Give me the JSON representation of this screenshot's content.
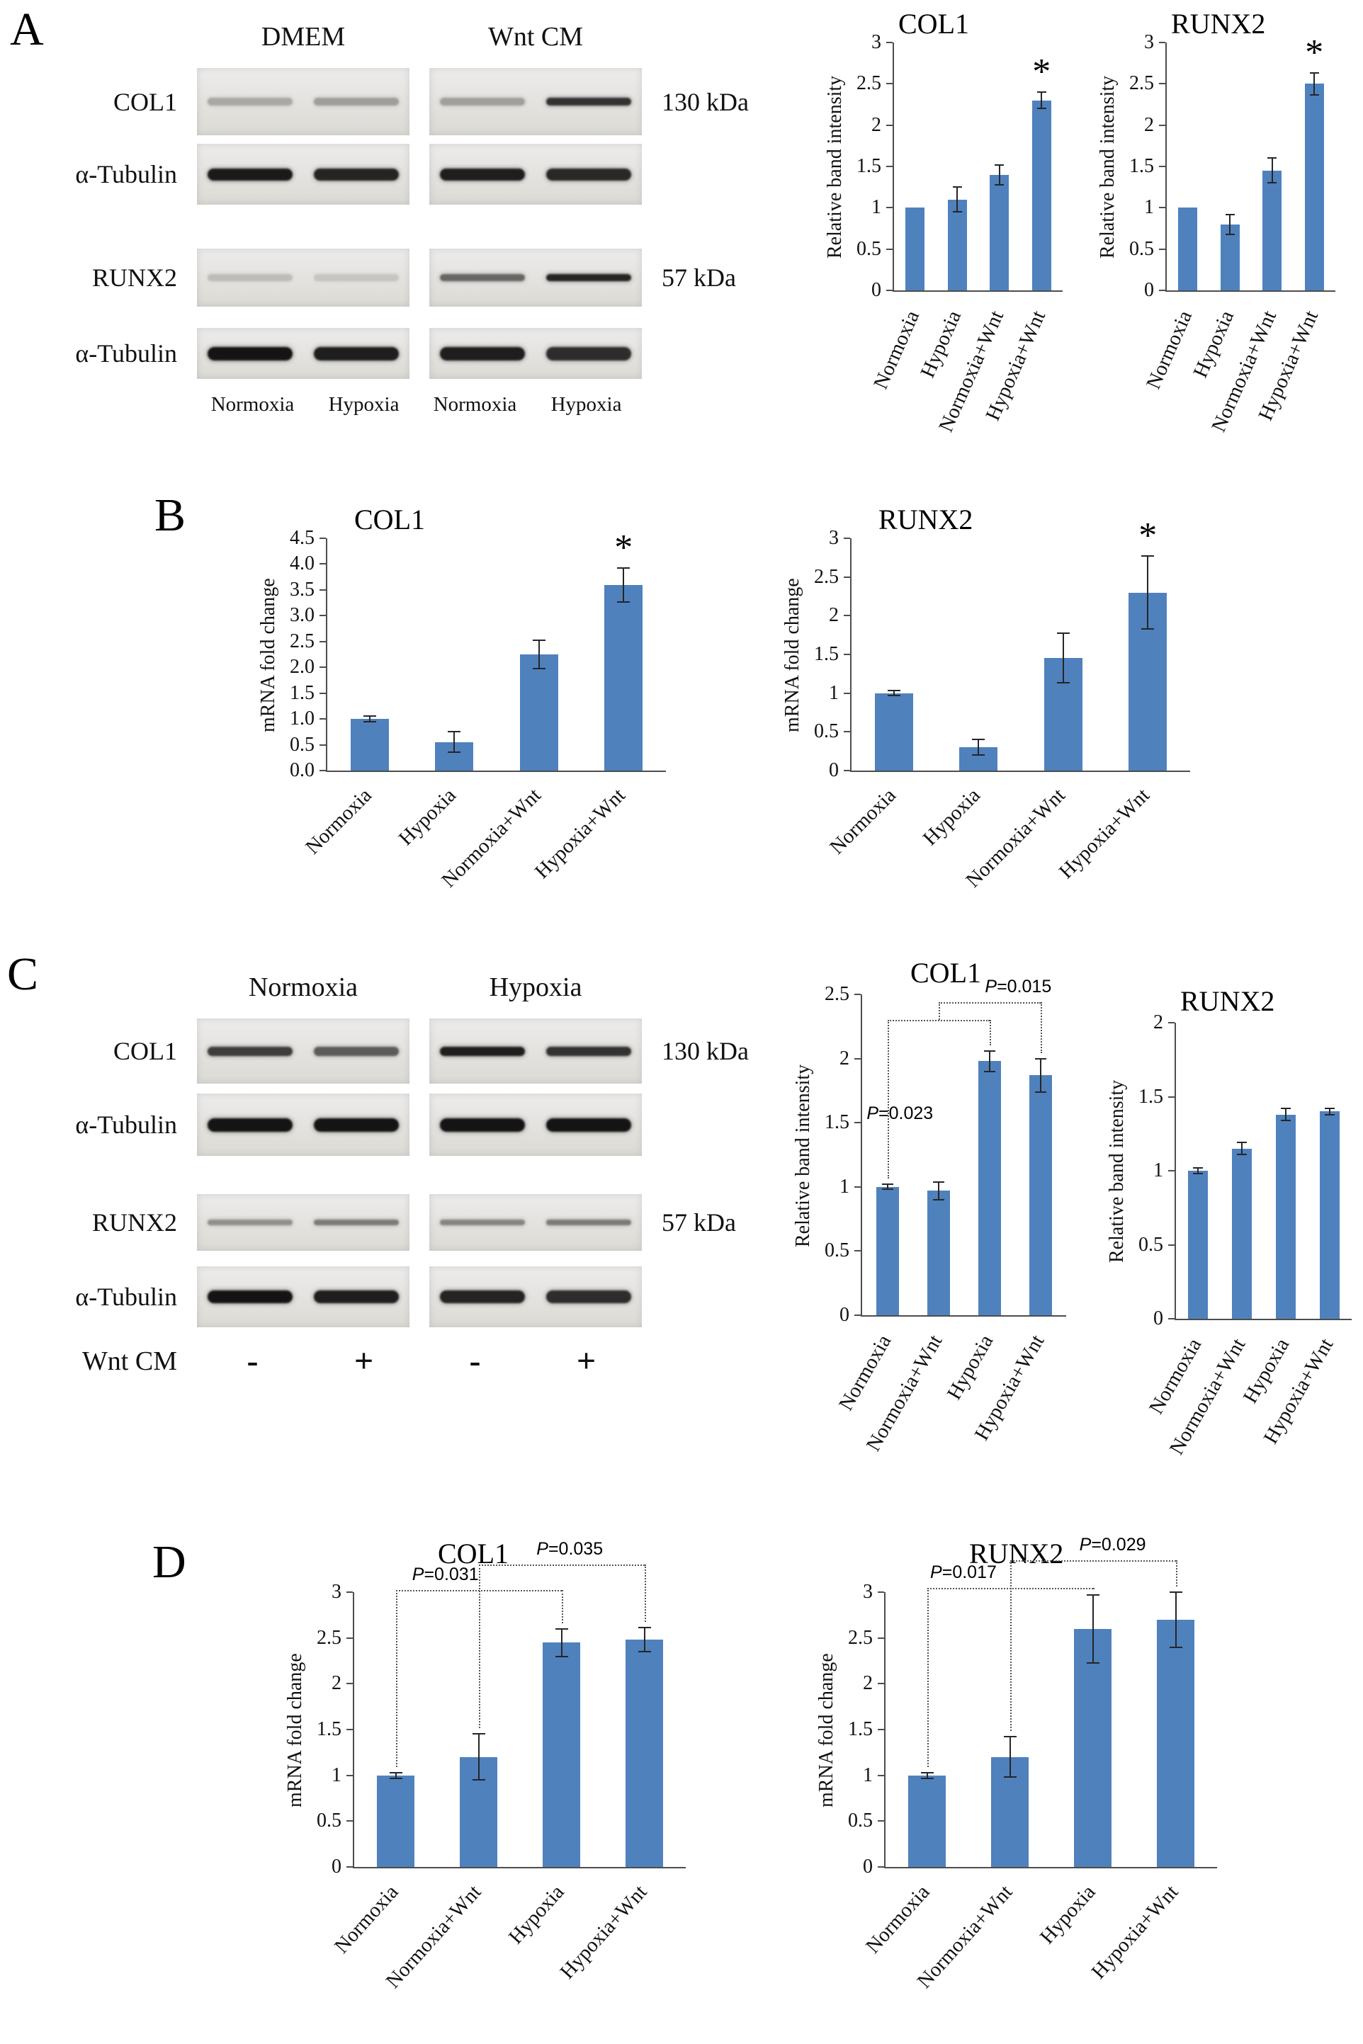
{
  "panelA": {
    "letter": "A",
    "group_labels": [
      "DMEM",
      "Wnt CM"
    ],
    "lane_labels": [
      "Normoxia",
      "Hypoxia",
      "Normoxia",
      "Hypoxia"
    ],
    "footer_label": "",
    "row_gaps": [
      0,
      12,
      62,
      30
    ],
    "rows": [
      {
        "label": "COL1",
        "kda": "130 kDa",
        "t": 11,
        "h": 95,
        "bands": [
          [
            0.28,
            0.33
          ],
          [
            0.32,
            0.85
          ]
        ]
      },
      {
        "label": "α-Tubulin",
        "kda": "",
        "t": 17,
        "h": 86,
        "bands": [
          [
            0.97,
            0.92
          ],
          [
            0.95,
            0.9
          ]
        ]
      },
      {
        "label": "RUNX2",
        "kda": "57 kDa",
        "t": 10,
        "h": 82,
        "bands": [
          [
            0.18,
            0.14
          ],
          [
            0.6,
            0.92
          ]
        ]
      },
      {
        "label": "α-Tubulin",
        "kda": "",
        "t": 19,
        "h": 72,
        "bands": [
          [
            1.0,
            0.95
          ],
          [
            0.95,
            0.88
          ]
        ]
      }
    ]
  },
  "panelB": {
    "letter": "B"
  },
  "panelC": {
    "letter": "C",
    "group_labels": [
      "Normoxia",
      "Hypoxia"
    ],
    "lane_labels": [
      "-",
      "+",
      "-",
      "+"
    ],
    "footer_label": "Wnt CM",
    "footer_class": "signs",
    "row_gaps": [
      0,
      14,
      54,
      22
    ],
    "rows": [
      {
        "label": "COL1",
        "kda": "130 kDa",
        "t": 13,
        "h": 92,
        "bands": [
          [
            0.8,
            0.65
          ],
          [
            0.95,
            0.85
          ]
        ]
      },
      {
        "label": "α-Tubulin",
        "kda": "",
        "t": 19,
        "h": 88,
        "bands": [
          [
            1.0,
            1.0
          ],
          [
            1.0,
            1.0
          ]
        ]
      },
      {
        "label": "RUNX2",
        "kda": "57 kDa",
        "t": 8,
        "h": 80,
        "bands": [
          [
            0.4,
            0.5
          ],
          [
            0.45,
            0.5
          ]
        ]
      },
      {
        "label": "α-Tubulin",
        "kda": "",
        "t": 18,
        "h": 86,
        "bands": [
          [
            1.0,
            0.95
          ],
          [
            0.92,
            0.88
          ]
        ]
      }
    ]
  },
  "panelD": {
    "letter": "D"
  },
  "colors": {
    "bar": "#4f81bd",
    "axis": "#4d4d4d"
  },
  "chart_data": [
    {
      "id": "A-COL1",
      "panel": "A",
      "type": "bar",
      "title": "COL1",
      "ylabel": "Relative band intensity",
      "ymax": 3,
      "ytick": 0.5,
      "categories": [
        "Normoxia",
        "Hypoxia",
        "Normoxia+Wnt",
        "Hypoxia+Wnt"
      ],
      "values": [
        1.0,
        1.1,
        1.4,
        2.3
      ],
      "errors": [
        0,
        0.15,
        0.12,
        0.1
      ],
      "star_index": 3
    },
    {
      "id": "A-RUNX2",
      "panel": "A",
      "type": "bar",
      "title": "RUNX2",
      "ylabel": "Relative band intensity",
      "ymax": 3,
      "ytick": 0.5,
      "categories": [
        "Normoxia",
        "Hypoxia",
        "Normoxia+Wnt",
        "Hypoxia+Wnt"
      ],
      "values": [
        1.0,
        0.8,
        1.45,
        2.5
      ],
      "errors": [
        0,
        0.12,
        0.15,
        0.13
      ],
      "star_index": 3
    },
    {
      "id": "B-COL1",
      "panel": "B",
      "type": "bar",
      "title": "COL1",
      "ylabel": "mRNA fold change",
      "ymax": 4.5,
      "ytick": 0.5,
      "tick_decimals": 1,
      "categories": [
        "Normoxia",
        "Hypoxia",
        "Normoxia+Wnt",
        "Hypoxia+Wnt"
      ],
      "values": [
        1.0,
        0.55,
        2.25,
        3.6
      ],
      "errors": [
        0.05,
        0.2,
        0.28,
        0.33
      ],
      "star_index": 3
    },
    {
      "id": "B-RUNX2",
      "panel": "B",
      "type": "bar",
      "title": "RUNX2",
      "ylabel": "mRNA fold change",
      "ymax": 3,
      "ytick": 0.5,
      "categories": [
        "Normoxia",
        "Hypoxia",
        "Normoxia+Wnt",
        "Hypoxia+Wnt"
      ],
      "values": [
        1.0,
        0.3,
        1.45,
        2.3
      ],
      "errors": [
        0.03,
        0.1,
        0.32,
        0.47
      ],
      "star_index": 3
    },
    {
      "id": "C-COL1",
      "panel": "C",
      "type": "bar",
      "title": "COL1",
      "ylabel": "Relative band intensity",
      "ymax": 2.5,
      "ytick": 0.5,
      "categories": [
        "Normoxia",
        "Normoxia+Wnt",
        "Hypoxia",
        "Hypoxia+Wnt"
      ],
      "values": [
        1.0,
        0.97,
        1.98,
        1.87
      ],
      "errors": [
        0.02,
        0.07,
        0.08,
        0.13
      ],
      "brackets": [
        {
          "from": 0,
          "to": 2,
          "y": 2.3,
          "label": "P=0.023",
          "label_x": 0.12,
          "label_dy": 118
        },
        {
          "from": 1,
          "to": 3,
          "y": 2.44,
          "label": "P=0.015",
          "label_x": 0.78,
          "label_dy": -36,
          "drop_from": 2.3
        }
      ]
    },
    {
      "id": "C-RUNX2",
      "panel": "C",
      "type": "bar",
      "title": "RUNX2",
      "ylabel": "Relative band intensity",
      "ymax": 2,
      "ytick": 0.5,
      "categories": [
        "Normoxia",
        "Normoxia+Wnt",
        "Hypoxia",
        "Hypoxia+Wnt"
      ],
      "values": [
        1.0,
        1.15,
        1.38,
        1.4
      ],
      "errors": [
        0.02,
        0.04,
        0.04,
        0.02
      ]
    },
    {
      "id": "D-COL1",
      "panel": "D",
      "type": "bar",
      "title": "COL1",
      "ylabel": "mRNA fold change",
      "ymax": 3,
      "ytick": 0.5,
      "categories": [
        "Normoxia",
        "Normoxia+Wnt",
        "Hypoxia",
        "Hypoxia+Wnt"
      ],
      "values": [
        1.0,
        1.2,
        2.45,
        2.48
      ],
      "errors": [
        0.03,
        0.25,
        0.15,
        0.13
      ],
      "brackets": [
        {
          "from": 0,
          "to": 2,
          "y": 3.02,
          "label": "P=0.031",
          "label_x": 0.3,
          "label_dy": -36
        },
        {
          "from": 1,
          "to": 3,
          "y": 3.3,
          "label": "P=0.035",
          "label_x": 0.55,
          "label_dy": -36
        }
      ]
    },
    {
      "id": "D-RUNX2",
      "panel": "D",
      "type": "bar",
      "title": "RUNX2",
      "ylabel": "mRNA fold change",
      "ymax": 3,
      "ytick": 0.5,
      "categories": [
        "Normoxia",
        "Normoxia+Wnt",
        "Hypoxia",
        "Hypoxia+Wnt"
      ],
      "values": [
        1.0,
        1.2,
        2.6,
        2.7
      ],
      "errors": [
        0.03,
        0.22,
        0.37,
        0.3
      ],
      "brackets": [
        {
          "from": 0,
          "to": 2,
          "y": 3.05,
          "label": "P=0.017",
          "label_x": 0.22,
          "label_dy": -36
        },
        {
          "from": 1,
          "to": 3,
          "y": 3.35,
          "label": "P=0.029",
          "label_x": 0.62,
          "label_dy": -36
        }
      ]
    }
  ]
}
